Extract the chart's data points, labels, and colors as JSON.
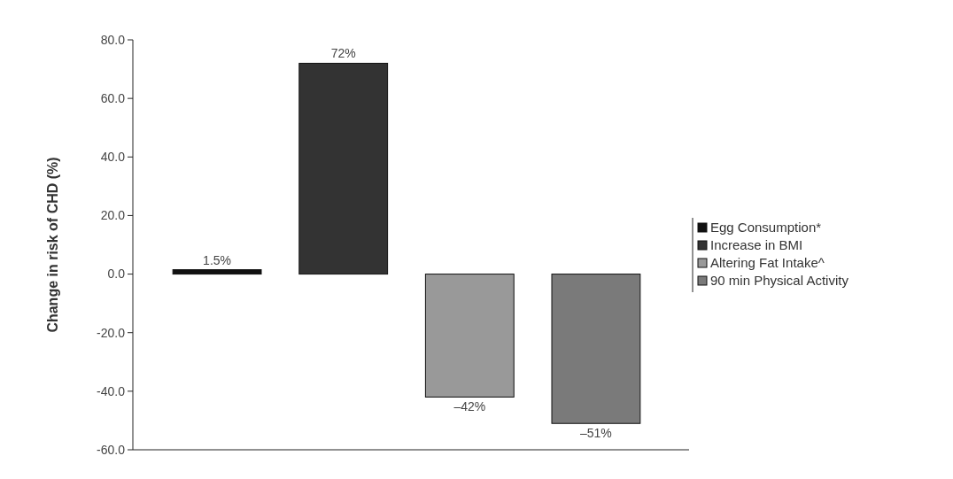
{
  "chart_data": {
    "type": "bar",
    "ylabel": "Change in risk of CHD (%)",
    "categories": [
      null
    ],
    "series": [
      {
        "name": "Egg Consumption*",
        "color": "#111111",
        "values": [
          1.5
        ],
        "value_labels": [
          "1.5%"
        ]
      },
      {
        "name": "Increase in BMI",
        "color": "#333333",
        "values": [
          72
        ],
        "value_labels": [
          "72%"
        ]
      },
      {
        "name": "Altering Fat Intake^",
        "color": "#999999",
        "values": [
          -42
        ],
        "value_labels": [
          "–42%"
        ]
      },
      {
        "name": "90 min Physical Activity",
        "color": "#7a7a7a",
        "values": [
          -51
        ],
        "value_labels": [
          "–51%"
        ]
      }
    ],
    "ylim": [
      -60,
      80
    ],
    "yticks": [
      {
        "value": -60,
        "label": "-60.0"
      },
      {
        "value": -40,
        "label": "-40.0"
      },
      {
        "value": -20,
        "label": "-20.0"
      },
      {
        "value": 0,
        "label": "0.0"
      },
      {
        "value": 20,
        "label": "20.0"
      },
      {
        "value": 40,
        "label": "40.0"
      },
      {
        "value": 60,
        "label": "60.0"
      },
      {
        "value": 80,
        "label": "80.0"
      }
    ],
    "grid": false,
    "legend": "right"
  }
}
